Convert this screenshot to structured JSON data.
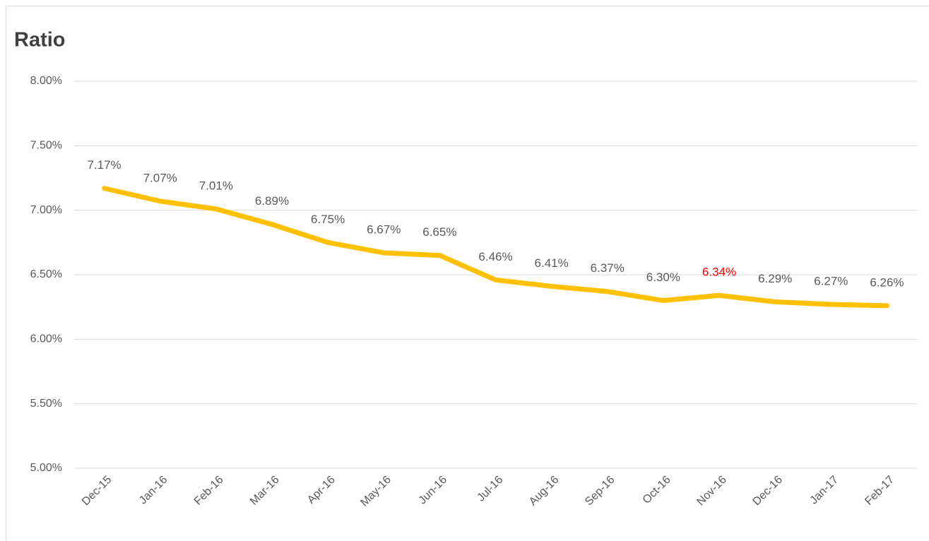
{
  "chart_data": {
    "type": "line",
    "title": "Ratio",
    "categories": [
      "Dec-15",
      "Jan-16",
      "Feb-16",
      "Mar-16",
      "Apr-16",
      "May-16",
      "Jun-16",
      "Jul-16",
      "Aug-16",
      "Sep-16",
      "Oct-16",
      "Nov-16",
      "Dec-16",
      "Jan-17",
      "Feb-17"
    ],
    "series": [
      {
        "name": "Ratio",
        "color": "#ffc000",
        "values": [
          7.17,
          7.07,
          7.01,
          6.89,
          6.75,
          6.67,
          6.65,
          6.46,
          6.41,
          6.37,
          6.3,
          6.34,
          6.29,
          6.27,
          6.26
        ],
        "value_labels": [
          "7.17%",
          "7.07%",
          "7.01%",
          "6.89%",
          "6.75%",
          "6.67%",
          "6.65%",
          "6.46%",
          "6.41%",
          "6.37%",
          "6.30%",
          "6.34%",
          "6.29%",
          "6.27%",
          "6.26%"
        ],
        "value_label_colors": [
          "#595959",
          "#595959",
          "#595959",
          "#595959",
          "#595959",
          "#595959",
          "#595959",
          "#595959",
          "#595959",
          "#595959",
          "#595959",
          "#ff0000",
          "#595959",
          "#595959",
          "#595959"
        ]
      }
    ],
    "ylim": [
      5,
      8
    ],
    "yticks": [
      {
        "value": 5,
        "label": "5.00%"
      },
      {
        "value": 5.5,
        "label": "5.50%"
      },
      {
        "value": 6,
        "label": "6.00%"
      },
      {
        "value": 6.5,
        "label": "6.50%"
      },
      {
        "value": 7,
        "label": "7.00%"
      },
      {
        "value": 7.5,
        "label": "7.50%"
      },
      {
        "value": 8,
        "label": "8.00%"
      }
    ],
    "grid": true
  }
}
